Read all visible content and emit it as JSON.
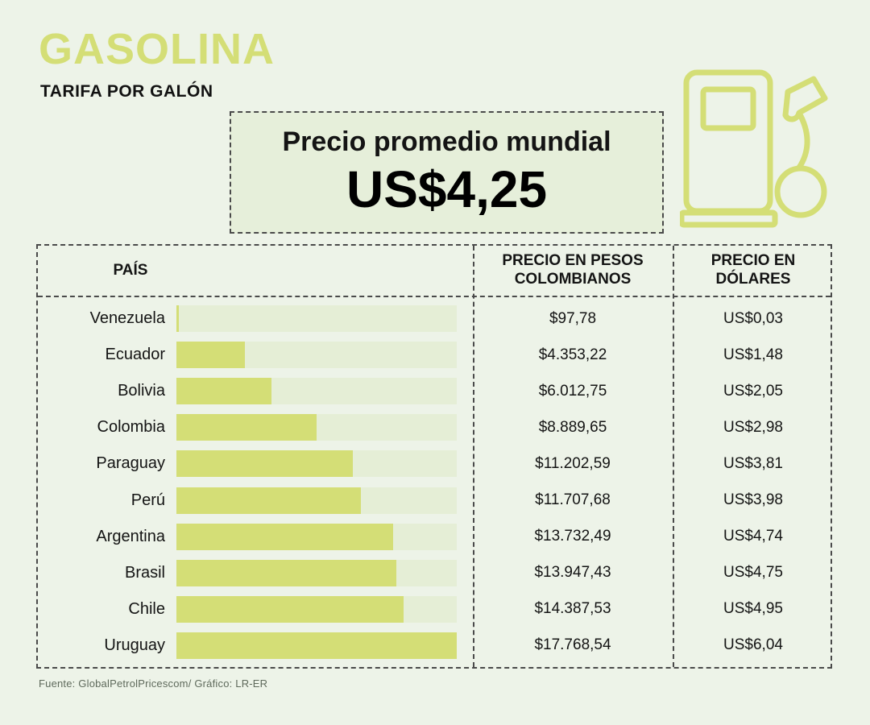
{
  "header": {
    "title": "GASOLINA",
    "subtitle": "TARIFA POR GALÓN",
    "average_label": "Precio promedio mundial",
    "average_value": "US$4,25"
  },
  "colors": {
    "accent": "#d4de76",
    "background": "#edf3e8",
    "bar_track": "#e5eed6",
    "promo_box": "#e6efda",
    "text": "#141414",
    "dashed_border": "#4a4a4a"
  },
  "icons": {
    "gas_pump": "gas-pump-icon"
  },
  "table": {
    "headers": [
      "PAÍS",
      "PRECIO EN PESOS COLOMBIANOS",
      "PRECIO EN DÓLARES"
    ]
  },
  "chart_data": {
    "type": "bar",
    "orientation": "horizontal",
    "title": "GASOLINA — TARIFA POR GALÓN",
    "subtitle": "Precio promedio mundial US$4,25",
    "categories": [
      "Venezuela",
      "Ecuador",
      "Bolivia",
      "Colombia",
      "Paraguay",
      "Perú",
      "Argentina",
      "Brasil",
      "Chile",
      "Uruguay"
    ],
    "series": [
      {
        "name": "PRECIO EN PESOS COLOMBIANOS",
        "values": [
          97.78,
          4353.22,
          6012.75,
          8889.65,
          11202.59,
          11707.68,
          13732.49,
          13947.43,
          14387.53,
          17768.54
        ],
        "labels": [
          "$97,78",
          "$4.353,22",
          "$6.012,75",
          "$8.889,65",
          "$11.202,59",
          "$11.707,68",
          "$13.732,49",
          "$13.947,43",
          "$14.387,53",
          "$17.768,54"
        ]
      },
      {
        "name": "PRECIO EN DÓLARES",
        "values": [
          0.03,
          1.48,
          2.05,
          2.98,
          3.81,
          3.98,
          4.74,
          4.75,
          4.95,
          6.04
        ],
        "labels": [
          "US$0,03",
          "US$1,48",
          "US$2,05",
          "US$2,98",
          "US$3,81",
          "US$3,98",
          "US$4,74",
          "US$4,75",
          "US$4,95",
          "US$6,04"
        ]
      }
    ],
    "xlim": [
      0,
      17768.54
    ],
    "grid": false,
    "legend": false
  },
  "footer": {
    "source": "Fuente: GlobalPetrolPricescom/ Gráfico: LR-ER"
  }
}
